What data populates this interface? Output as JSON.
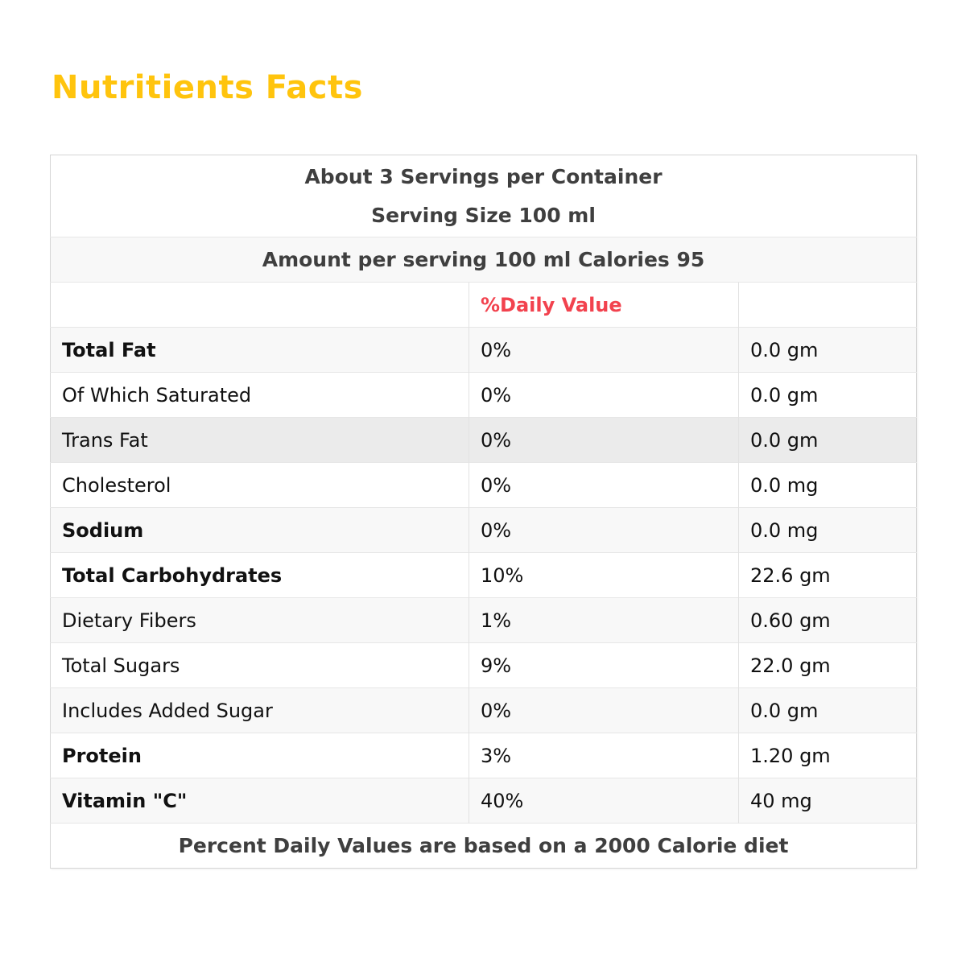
{
  "page": {
    "title": "Nutritients Facts",
    "title_color": "#ffc40d"
  },
  "table": {
    "header": {
      "servings_line": "About 3 Servings per Container",
      "serving_size_line": "Serving Size 100 ml",
      "amount_row": "Amount per serving 100 ml Calories 95",
      "daily_value_label": "%Daily Value",
      "daily_value_color": "#f2424e"
    },
    "rows": [
      {
        "label": "Total Fat",
        "bold": true,
        "daily_value": "0%",
        "amount": "0.0 gm",
        "shade": "light"
      },
      {
        "label": "Of Which Saturated",
        "bold": false,
        "daily_value": "0%",
        "amount": "0.0 gm",
        "shade": "white"
      },
      {
        "label": "Trans Fat",
        "bold": false,
        "daily_value": "0%",
        "amount": "0.0 gm",
        "shade": "dark"
      },
      {
        "label": "Cholesterol",
        "bold": false,
        "daily_value": "0%",
        "amount": "0.0 mg",
        "shade": "white"
      },
      {
        "label": "Sodium",
        "bold": true,
        "daily_value": "0%",
        "amount": "0.0 mg",
        "shade": "light"
      },
      {
        "label": "Total Carbohydrates",
        "bold": true,
        "daily_value": "10%",
        "amount": "22.6 gm",
        "shade": "white"
      },
      {
        "label": "Dietary Fibers",
        "bold": false,
        "daily_value": "1%",
        "amount": "0.60 gm",
        "shade": "light"
      },
      {
        "label": "Total Sugars",
        "bold": false,
        "daily_value": "9%",
        "amount": "22.0 gm",
        "shade": "white"
      },
      {
        "label": "Includes Added Sugar",
        "bold": false,
        "daily_value": "0%",
        "amount": "0.0 gm",
        "shade": "light"
      },
      {
        "label": "Protein",
        "bold": true,
        "daily_value": "3%",
        "amount": "1.20 gm",
        "shade": "white"
      },
      {
        "label": "Vitamin \"C\"",
        "bold": true,
        "daily_value": "40%",
        "amount": "40 mg",
        "shade": "light"
      }
    ],
    "footer": "Percent Daily Values are based on a 2000 Calorie diet"
  }
}
